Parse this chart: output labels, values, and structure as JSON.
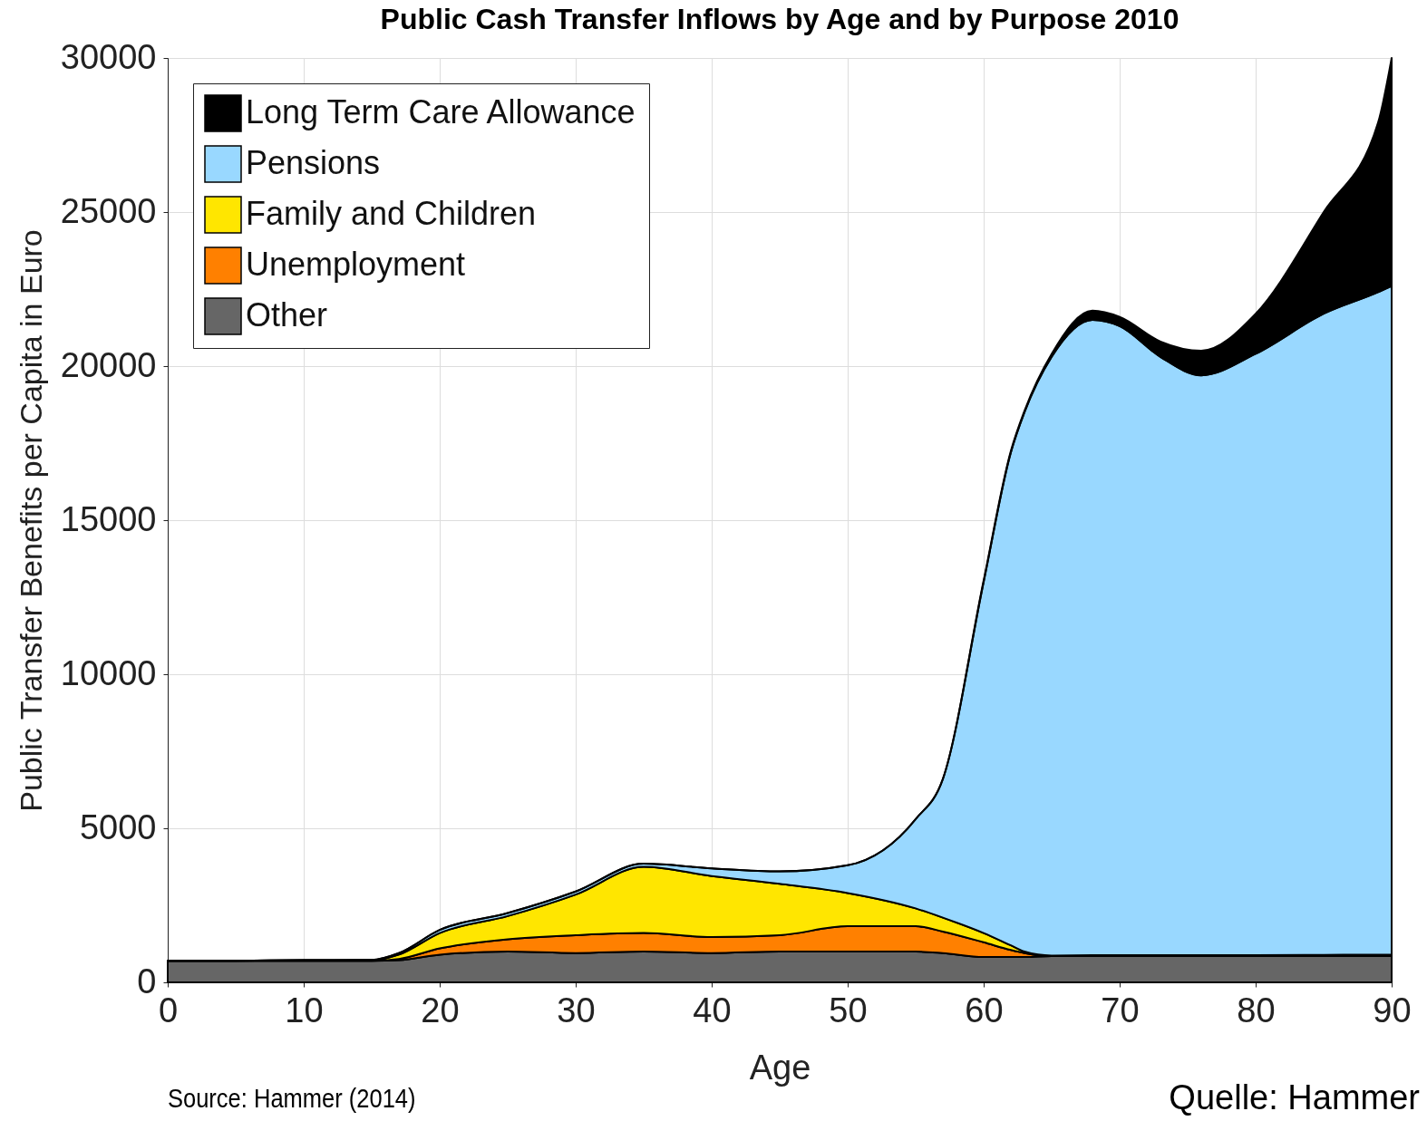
{
  "chart_data": {
    "type": "area",
    "stacked": true,
    "title": "Public Cash Transfer Inflows by Age and by Purpose 2010",
    "xlabel": "Age",
    "ylabel": "Public Transfer Benefits per Capita in Euro",
    "x": [
      0,
      5,
      10,
      15,
      17,
      20,
      25,
      30,
      35,
      40,
      45,
      50,
      55,
      57,
      60,
      62,
      63,
      65,
      68,
      70,
      73,
      76,
      80,
      85,
      89,
      90
    ],
    "series": [
      {
        "name": "Other",
        "color": "#666666",
        "values": [
          700,
          700,
          700,
          700,
          720,
          900,
          1000,
          950,
          1000,
          950,
          1000,
          1000,
          1000,
          950,
          820,
          820,
          820,
          850,
          850,
          850,
          850,
          850,
          850,
          850,
          850,
          850
        ]
      },
      {
        "name": "Unemployment",
        "color": "#ff8000",
        "values": [
          0,
          0,
          0,
          0,
          40,
          200,
          400,
          580,
          600,
          520,
          530,
          820,
          820,
          700,
          480,
          230,
          130,
          0,
          0,
          0,
          0,
          0,
          0,
          0,
          0,
          0
        ]
      },
      {
        "name": "Family and Children",
        "color": "#ffe600",
        "values": [
          0,
          0,
          20,
          20,
          140,
          500,
          750,
          1320,
          2150,
          1980,
          1670,
          1080,
          580,
          450,
          300,
          150,
          50,
          20,
          30,
          30,
          30,
          30,
          30,
          40,
          50,
          50
        ]
      },
      {
        "name": "Pensions",
        "color": "#99d8ff",
        "values": [
          0,
          0,
          0,
          10,
          50,
          100,
          100,
          100,
          100,
          250,
          400,
          900,
          2900,
          4500,
          11400,
          16000,
          17500,
          19430,
          20620,
          20420,
          19420,
          18820,
          19520,
          20810,
          21500,
          21700
        ]
      },
      {
        "name": "Long Term Care Allowance",
        "color": "#000000",
        "values": [
          0,
          0,
          0,
          0,
          0,
          0,
          0,
          0,
          0,
          0,
          0,
          0,
          0,
          0,
          50,
          50,
          50,
          100,
          300,
          300,
          500,
          800,
          1300,
          3300,
          5500,
          7400
        ]
      }
    ],
    "xlim": [
      0,
      90
    ],
    "xticks": [
      0,
      10,
      20,
      30,
      40,
      50,
      60,
      70,
      80,
      90
    ],
    "ylim": [
      0,
      30000
    ],
    "yticks": [
      0,
      5000,
      10000,
      15000,
      20000,
      25000,
      30000
    ],
    "grid": true,
    "legend": "top left",
    "annotations": [
      "Source: Hammer (2014)",
      "Quelle: Hammer"
    ]
  }
}
